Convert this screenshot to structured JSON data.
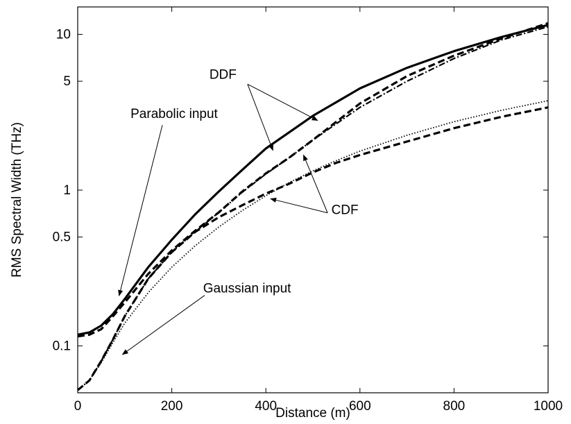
{
  "chart_data": {
    "type": "line",
    "xlabel": "Distance (m)",
    "ylabel": "RMS Spectral Width (THz)",
    "xlim": [
      0,
      1000
    ],
    "ylim": [
      0.05,
      15
    ],
    "yscale": "log",
    "grid": false,
    "x_ticks": [
      0,
      200,
      400,
      600,
      800,
      1000
    ],
    "x_tick_labels": [
      "0",
      "200",
      "400",
      "600",
      "800",
      "1000"
    ],
    "y_ticks": [
      0.1,
      0.5,
      1,
      5,
      10
    ],
    "y_tick_labels": [
      "0.1",
      "0.5",
      "1",
      "5",
      "10"
    ],
    "series": [
      {
        "style": "solid",
        "x": [
          0,
          25,
          50,
          75,
          100,
          150,
          200,
          250,
          300,
          350,
          400,
          500,
          600,
          700,
          800,
          900,
          1000
        ],
        "y": [
          0.118,
          0.122,
          0.135,
          0.16,
          0.2,
          0.32,
          0.48,
          0.7,
          0.98,
          1.35,
          1.85,
          3.0,
          4.5,
          6.1,
          7.8,
          9.6,
          11.5
        ]
      },
      {
        "style": "dashed",
        "x": [
          0,
          25,
          50,
          75,
          100,
          150,
          200,
          250,
          300,
          350,
          400,
          450,
          500,
          600,
          700,
          800,
          900,
          1000
        ],
        "y": [
          0.115,
          0.118,
          0.128,
          0.155,
          0.19,
          0.29,
          0.41,
          0.55,
          0.72,
          0.98,
          1.28,
          1.62,
          2.1,
          3.6,
          5.4,
          7.3,
          9.4,
          11.8
        ]
      },
      {
        "style": "dashdot",
        "x": [
          0,
          25,
          50,
          75,
          100,
          150,
          200,
          250,
          300,
          350,
          400,
          450,
          500,
          600,
          700,
          800,
          900,
          1000
        ],
        "y": [
          0.052,
          0.06,
          0.08,
          0.11,
          0.155,
          0.27,
          0.4,
          0.54,
          0.72,
          0.97,
          1.27,
          1.62,
          2.1,
          3.4,
          5.0,
          7.0,
          9.2,
          11.2
        ]
      },
      {
        "style": "dashed",
        "x": [
          0,
          25,
          50,
          75,
          100,
          150,
          200,
          250,
          300,
          350,
          400,
          450,
          500,
          550,
          600,
          700,
          800,
          900,
          1000
        ],
        "y": [
          0.052,
          0.06,
          0.08,
          0.11,
          0.155,
          0.27,
          0.4,
          0.54,
          0.67,
          0.8,
          0.95,
          1.1,
          1.3,
          1.5,
          1.68,
          2.05,
          2.5,
          2.95,
          3.4
        ]
      },
      {
        "style": "dotted",
        "x": [
          0,
          25,
          50,
          75,
          100,
          150,
          200,
          250,
          300,
          350,
          400,
          450,
          500,
          550,
          600,
          700,
          800,
          900,
          1000
        ],
        "y": [
          0.052,
          0.06,
          0.078,
          0.105,
          0.14,
          0.22,
          0.32,
          0.44,
          0.58,
          0.74,
          0.92,
          1.12,
          1.33,
          1.55,
          1.78,
          2.25,
          2.75,
          3.25,
          3.75
        ]
      }
    ],
    "annotations": [
      {
        "text": "DDF",
        "x": 280,
        "y": 5.2,
        "anchor": "start",
        "arrows": [
          [
            510,
            2.8
          ],
          [
            415,
            1.8
          ]
        ]
      },
      {
        "text": "Parabolic input",
        "x": 205,
        "y": 2.9,
        "anchor": "middle",
        "arrows": [
          [
            88,
            0.21
          ]
        ]
      },
      {
        "text": "CDF",
        "x": 568,
        "y": 0.7,
        "anchor": "middle",
        "arrows": [
          [
            410,
            0.88
          ],
          [
            480,
            1.68
          ]
        ]
      },
      {
        "text": "Gaussian input",
        "x": 360,
        "y": 0.22,
        "anchor": "middle",
        "arrows": [
          [
            95,
            0.088
          ]
        ]
      }
    ]
  }
}
